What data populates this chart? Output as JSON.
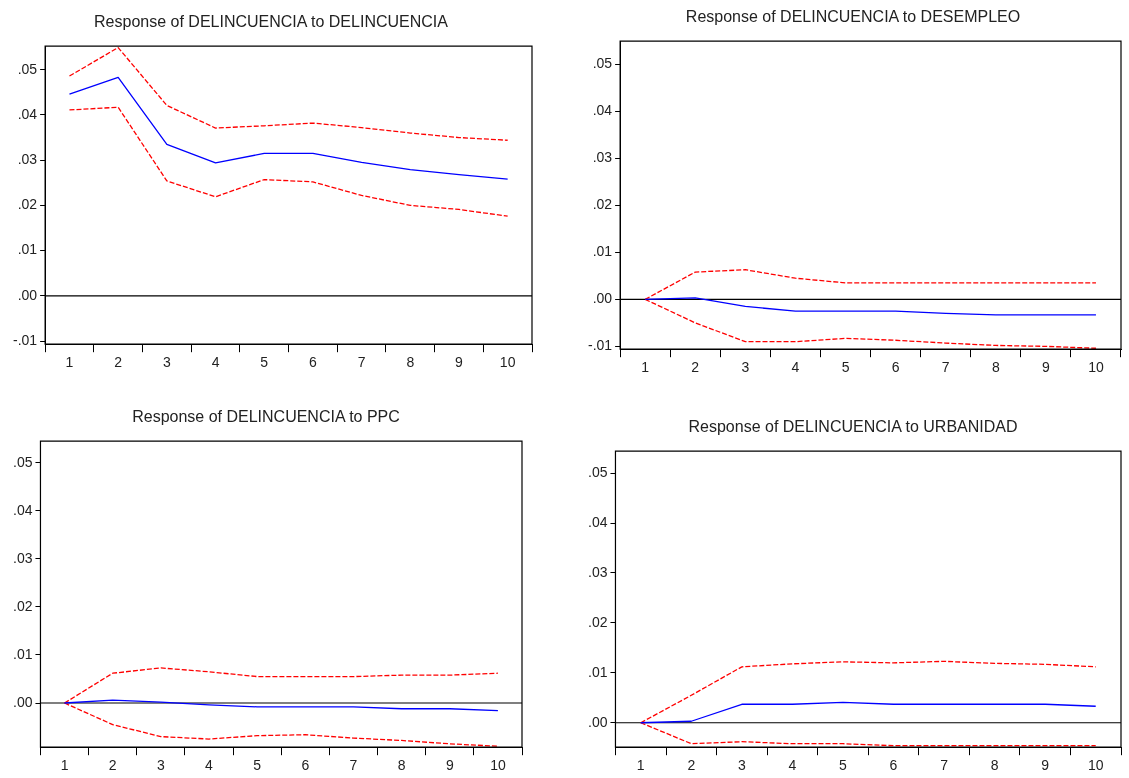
{
  "chart_data": [
    {
      "type": "line",
      "title": "Response of DELINCUENCIA to DELINCUENCIA",
      "categories": [
        "1",
        "2",
        "3",
        "4",
        "5",
        "6",
        "7",
        "8",
        "9",
        "10"
      ],
      "series": [
        {
          "color": "#0000ff",
          "line_style": "solid",
          "values": [
            0.0446,
            0.0483,
            0.0335,
            0.0294,
            0.0315,
            0.0315,
            0.0295,
            0.0279,
            0.0268,
            0.0258
          ]
        },
        {
          "color": "#ff0000",
          "line_style": "dashed",
          "values": [
            0.0486,
            0.0549,
            0.0421,
            0.0371,
            0.0376,
            0.0382,
            0.0372,
            0.036,
            0.035,
            0.0344
          ]
        },
        {
          "color": "#ff0000",
          "line_style": "dashed",
          "values": [
            0.0411,
            0.0417,
            0.0254,
            0.0219,
            0.0257,
            0.0252,
            0.0222,
            0.02,
            0.0191,
            0.0176
          ]
        }
      ],
      "ylim": [
        -0.0107,
        0.0552
      ],
      "yticks": [
        {
          "value": -0.01,
          "label": "-.01"
        },
        {
          "value": 0,
          "label": ".00"
        },
        {
          "value": 0.01,
          "label": ".01"
        },
        {
          "value": 0.02,
          "label": ".02"
        },
        {
          "value": 0.03,
          "label": ".03"
        },
        {
          "value": 0.04,
          "label": ".04"
        },
        {
          "value": 0.05,
          "label": ".05"
        }
      ],
      "ref_lines": [
        {
          "axis": "y",
          "value": 0,
          "color": "#000000"
        }
      ],
      "legend": false,
      "grid": false,
      "marker": "none"
    },
    {
      "type": "line",
      "title": "Response of DELINCUENCIA to DESEMPLEO",
      "categories": [
        "1",
        "2",
        "3",
        "4",
        "5",
        "6",
        "7",
        "8",
        "9",
        "10"
      ],
      "series": [
        {
          "color": "#0000ff",
          "line_style": "solid",
          "values": [
            0,
            0.0003,
            -0.0015,
            -0.0025,
            -0.0025,
            -0.0025,
            -0.003,
            -0.0033,
            -0.0033,
            -0.0033
          ]
        },
        {
          "color": "#ff0000",
          "line_style": "dashed",
          "values": [
            0,
            0.0058,
            0.0063,
            0.0045,
            0.0035,
            0.0035,
            0.0035,
            0.0035,
            0.0035,
            0.0035
          ]
        },
        {
          "color": "#ff0000",
          "line_style": "dashed",
          "values": [
            0,
            -0.005,
            -0.009,
            -0.009,
            -0.0083,
            -0.0087,
            -0.0093,
            -0.0098,
            -0.01,
            -0.0104
          ]
        }
      ],
      "ylim": [
        -0.0106,
        0.0549
      ],
      "yticks": [
        {
          "value": -0.01,
          "label": "-.01"
        },
        {
          "value": 0,
          "label": ".00"
        },
        {
          "value": 0.01,
          "label": ".01"
        },
        {
          "value": 0.02,
          "label": ".02"
        },
        {
          "value": 0.03,
          "label": ".03"
        },
        {
          "value": 0.04,
          "label": ".04"
        },
        {
          "value": 0.05,
          "label": ".05"
        }
      ],
      "ref_lines": [
        {
          "axis": "y",
          "value": 0,
          "color": "#000000"
        }
      ],
      "legend": false,
      "grid": false,
      "marker": "none"
    },
    {
      "type": "line",
      "title": "Response of DELINCUENCIA to PPC",
      "categories": [
        "1",
        "2",
        "3",
        "4",
        "5",
        "6",
        "7",
        "8",
        "9",
        "10"
      ],
      "series": [
        {
          "color": "#0000ff",
          "line_style": "solid",
          "values": [
            0,
            0.0006,
            0.0002,
            -0.0004,
            -0.0008,
            -0.0008,
            -0.0008,
            -0.0012,
            -0.0012,
            -0.0016
          ]
        },
        {
          "color": "#ff0000",
          "line_style": "dashed",
          "values": [
            0,
            0.0062,
            0.0073,
            0.0065,
            0.0055,
            0.0055,
            0.0055,
            0.0058,
            0.0058,
            0.0062
          ]
        },
        {
          "color": "#ff0000",
          "line_style": "dashed",
          "values": [
            0,
            -0.0045,
            -0.007,
            -0.0075,
            -0.0068,
            -0.0066,
            -0.0073,
            -0.0078,
            -0.0085,
            -0.009
          ]
        }
      ],
      "ylim": [
        -0.0092,
        0.0545
      ],
      "yticks": [
        {
          "value": 0,
          "label": ".00"
        },
        {
          "value": 0.01,
          "label": ".01"
        },
        {
          "value": 0.02,
          "label": ".02"
        },
        {
          "value": 0.03,
          "label": ".03"
        },
        {
          "value": 0.04,
          "label": ".04"
        },
        {
          "value": 0.05,
          "label": ".05"
        }
      ],
      "ref_lines": [
        {
          "axis": "y",
          "value": 0,
          "color": "#000000"
        }
      ],
      "legend": false,
      "grid": false,
      "marker": "none"
    },
    {
      "type": "line",
      "title": "Response of DELINCUENCIA to URBANIDAD",
      "categories": [
        "1",
        "2",
        "3",
        "4",
        "5",
        "6",
        "7",
        "8",
        "9",
        "10"
      ],
      "series": [
        {
          "color": "#0000ff",
          "line_style": "solid",
          "values": [
            0,
            0.0003,
            0.0037,
            0.0037,
            0.0041,
            0.0037,
            0.0037,
            0.0037,
            0.0037,
            0.0033
          ]
        },
        {
          "color": "#ff0000",
          "line_style": "dashed",
          "values": [
            0,
            0.0055,
            0.0112,
            0.0118,
            0.0122,
            0.012,
            0.0123,
            0.0119,
            0.0117,
            0.0112
          ]
        },
        {
          "color": "#ff0000",
          "line_style": "dashed",
          "values": [
            0,
            -0.0042,
            -0.0038,
            -0.0042,
            -0.0042,
            -0.0046,
            -0.0046,
            -0.0046,
            -0.0046,
            -0.0046
          ]
        }
      ],
      "ylim": [
        -0.0049,
        0.0544
      ],
      "yticks": [
        {
          "value": 0,
          "label": ".00"
        },
        {
          "value": 0.01,
          "label": ".01"
        },
        {
          "value": 0.02,
          "label": ".02"
        },
        {
          "value": 0.03,
          "label": ".03"
        },
        {
          "value": 0.04,
          "label": ".04"
        },
        {
          "value": 0.05,
          "label": ".05"
        }
      ],
      "ref_lines": [
        {
          "axis": "y",
          "value": 0,
          "color": "#000000"
        }
      ],
      "legend": false,
      "grid": false,
      "marker": "none"
    }
  ]
}
